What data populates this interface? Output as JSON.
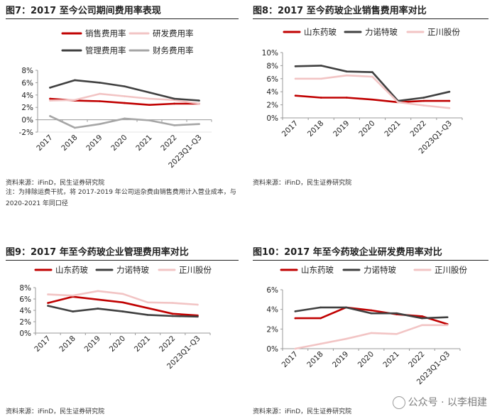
{
  "watermark": "公众号 · 以李相建",
  "chart_data": [
    {
      "id": "fig7",
      "type": "line",
      "title": "图7：2017 至今公司期间费用率表现",
      "source": "资料来源：iFinD，民生证券研究院",
      "note": "注：为排除运费干扰，将 2017-2019 年公司运杂费由销售费用计入营业成本，与 2020-2021 年同口径",
      "categories": [
        "2017",
        "2018",
        "2019",
        "2020",
        "2021",
        "2022",
        "2023Q1-Q3"
      ],
      "ylim": [
        -2,
        8
      ],
      "yticks": [
        -2,
        0,
        2,
        4,
        6,
        8
      ],
      "ytick_labels": [
        "-2%",
        "0%",
        "2%",
        "4%",
        "6%",
        "8%"
      ],
      "series": [
        {
          "name": "销售费用率",
          "color": "#c00000",
          "values": [
            3.4,
            3.1,
            3.0,
            2.7,
            2.4,
            2.6,
            2.6
          ]
        },
        {
          "name": "研发费用率",
          "color": "#f2c4c4",
          "values": [
            3.1,
            3.2,
            4.2,
            3.8,
            3.4,
            3.2,
            2.6
          ]
        },
        {
          "name": "管理费用率",
          "color": "#404040",
          "values": [
            5.2,
            6.4,
            6.0,
            5.4,
            4.4,
            3.4,
            3.1
          ]
        },
        {
          "name": "财务费用率",
          "color": "#a6a6a6",
          "values": [
            0.6,
            -1.3,
            -0.7,
            0.2,
            -0.1,
            -0.9,
            -0.7
          ]
        }
      ]
    },
    {
      "id": "fig8",
      "type": "line",
      "title": "图8：2017 至今药玻企业销售费用率对比",
      "source": "资料来源：iFinD，民生证券研究院",
      "categories": [
        "2017",
        "2018",
        "2019",
        "2020",
        "2021",
        "2022",
        "2023Q1-Q3"
      ],
      "ylim": [
        0,
        10
      ],
      "yticks": [
        0,
        2,
        4,
        6,
        8,
        10
      ],
      "ytick_labels": [
        "0%",
        "2%",
        "4%",
        "6%",
        "8%",
        "10%"
      ],
      "series": [
        {
          "name": "山东药玻",
          "color": "#c00000",
          "values": [
            3.4,
            3.1,
            3.1,
            2.8,
            2.4,
            2.6,
            2.6
          ]
        },
        {
          "name": "力诺特玻",
          "color": "#404040",
          "values": [
            7.9,
            8.0,
            7.1,
            7.0,
            2.6,
            3.1,
            4.0
          ]
        },
        {
          "name": "正川股份",
          "color": "#f2c4c4",
          "values": [
            6.0,
            6.0,
            6.5,
            6.3,
            2.4,
            1.9,
            1.5
          ]
        }
      ]
    },
    {
      "id": "fig9",
      "type": "line",
      "title": "图9：2017 年至今药玻企业管理费用率对比",
      "source": "资料来源：iFinD，民生证券研究院",
      "categories": [
        "2017",
        "2018",
        "2019",
        "2020",
        "2021",
        "2022",
        "2023Q1-Q3"
      ],
      "ylim": [
        0,
        8
      ],
      "yticks": [
        0,
        2,
        4,
        6,
        8
      ],
      "ytick_labels": [
        "0%",
        "2%",
        "4%",
        "6%",
        "8%"
      ],
      "series": [
        {
          "name": "山东药玻",
          "color": "#c00000",
          "values": [
            5.3,
            6.4,
            5.9,
            5.4,
            4.4,
            3.4,
            3.1
          ]
        },
        {
          "name": "力诺特玻",
          "color": "#404040",
          "values": [
            4.8,
            3.8,
            4.3,
            3.8,
            3.2,
            3.0,
            2.9
          ]
        },
        {
          "name": "正川股份",
          "color": "#f2c4c4",
          "values": [
            6.8,
            6.6,
            7.4,
            6.9,
            5.4,
            5.3,
            5.0
          ]
        }
      ]
    },
    {
      "id": "fig10",
      "type": "line",
      "title": "图10：2017 年至今药玻企业研发费用率对比",
      "source": "资料来源：iFinD，民生证券研究院",
      "categories": [
        "2017",
        "2018",
        "2019",
        "2020",
        "2021",
        "2022",
        "2023Q1-Q3"
      ],
      "ylim": [
        0,
        6
      ],
      "yticks": [
        0,
        2,
        4,
        6
      ],
      "ytick_labels": [
        "0%",
        "2%",
        "4%",
        "6%"
      ],
      "series": [
        {
          "name": "山东药玻",
          "color": "#c00000",
          "values": [
            3.1,
            3.1,
            4.2,
            3.9,
            3.5,
            3.3,
            2.5
          ]
        },
        {
          "name": "力诺特玻",
          "color": "#404040",
          "values": [
            3.8,
            4.2,
            4.2,
            3.6,
            3.6,
            3.1,
            3.2
          ]
        },
        {
          "name": "正川股份",
          "color": "#f2c4c4",
          "values": [
            0.0,
            0.5,
            1.0,
            1.6,
            1.5,
            2.4,
            2.4
          ]
        }
      ]
    }
  ]
}
